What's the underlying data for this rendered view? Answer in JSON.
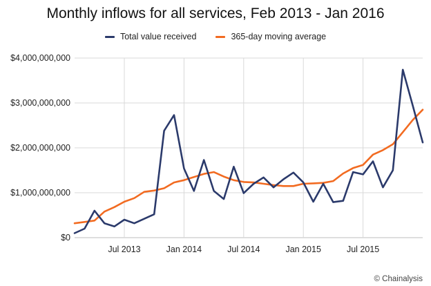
{
  "chart_data": {
    "type": "line",
    "title": "Monthly inflows for all services, Feb 2013 - Jan 2016",
    "xlabel": "",
    "ylabel": "",
    "x": [
      "2013-02",
      "2013-03",
      "2013-04",
      "2013-05",
      "2013-06",
      "2013-07",
      "2013-08",
      "2013-09",
      "2013-10",
      "2013-11",
      "2013-12",
      "2014-01",
      "2014-02",
      "2014-03",
      "2014-04",
      "2014-05",
      "2014-06",
      "2014-07",
      "2014-08",
      "2014-09",
      "2014-10",
      "2014-11",
      "2014-12",
      "2015-01",
      "2015-02",
      "2015-03",
      "2015-04",
      "2015-05",
      "2015-06",
      "2015-07",
      "2015-08",
      "2015-09",
      "2015-10",
      "2015-11",
      "2015-12",
      "2016-01"
    ],
    "x_ticks": [
      "Jul 2013",
      "Jan 2014",
      "Jul 2014",
      "Jan 2015",
      "Jul 2015"
    ],
    "y_ticks": [
      "$0",
      "$1,000,000,000",
      "$2,000,000,000",
      "$3,000,000,000",
      "$4,000,000,000"
    ],
    "ylim": [
      0,
      4000000000
    ],
    "grid": true,
    "legend_position": "top",
    "series": [
      {
        "name": "Total value received",
        "color": "#2b3a6b",
        "values": [
          100000000,
          200000000,
          600000000,
          320000000,
          250000000,
          400000000,
          320000000,
          420000000,
          520000000,
          2380000000,
          2730000000,
          1540000000,
          1040000000,
          1730000000,
          1040000000,
          860000000,
          1580000000,
          990000000,
          1200000000,
          1340000000,
          1120000000,
          1300000000,
          1450000000,
          1230000000,
          800000000,
          1200000000,
          790000000,
          820000000,
          1460000000,
          1410000000,
          1700000000,
          1120000000,
          1500000000,
          3740000000,
          2940000000,
          2120000000
        ]
      },
      {
        "name": "365-day moving average",
        "color": "#f26b21",
        "values": [
          320000000,
          350000000,
          380000000,
          580000000,
          680000000,
          800000000,
          880000000,
          1020000000,
          1050000000,
          1100000000,
          1230000000,
          1280000000,
          1350000000,
          1420000000,
          1460000000,
          1360000000,
          1280000000,
          1240000000,
          1230000000,
          1200000000,
          1170000000,
          1150000000,
          1150000000,
          1200000000,
          1210000000,
          1220000000,
          1260000000,
          1430000000,
          1550000000,
          1620000000,
          1850000000,
          1950000000,
          2080000000,
          2350000000,
          2620000000,
          2850000000
        ]
      }
    ]
  },
  "credit": "© Chainalysis"
}
